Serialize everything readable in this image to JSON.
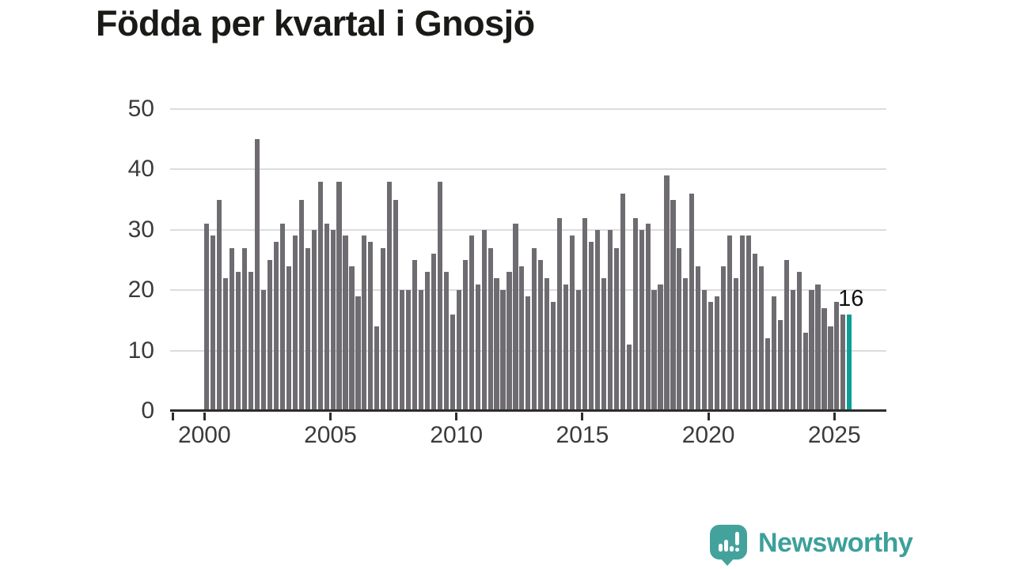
{
  "title": "Födda per kvartal i Gnosjö",
  "chart_data": {
    "type": "bar",
    "x_start": "2000-Q1",
    "x_end": "2025-Q3",
    "frequency": "quarterly",
    "values": [
      31,
      29,
      35,
      22,
      27,
      23,
      27,
      23,
      45,
      20,
      25,
      28,
      31,
      24,
      29,
      35,
      27,
      30,
      38,
      31,
      30,
      38,
      29,
      24,
      19,
      29,
      28,
      14,
      27,
      38,
      35,
      20,
      20,
      25,
      20,
      23,
      26,
      38,
      23,
      16,
      20,
      25,
      29,
      21,
      30,
      27,
      22,
      20,
      23,
      31,
      24,
      19,
      27,
      25,
      22,
      18,
      32,
      21,
      29,
      20,
      32,
      28,
      30,
      22,
      30,
      27,
      36,
      11,
      32,
      30,
      31,
      20,
      21,
      39,
      35,
      27,
      22,
      36,
      24,
      20,
      18,
      19,
      24,
      29,
      22,
      29,
      29,
      26,
      24,
      12,
      19,
      15,
      25,
      20,
      23,
      13,
      20,
      21,
      17,
      14,
      18,
      16,
      16
    ],
    "highlight_index": 102,
    "highlight_label": "16",
    "ylim": [
      0,
      50
    ],
    "yticks": [
      0,
      10,
      20,
      30,
      40,
      50
    ],
    "xticks": [
      {
        "label": "2000",
        "quarter_index": 0
      },
      {
        "label": "2005",
        "quarter_index": 20
      },
      {
        "label": "2010",
        "quarter_index": 40
      },
      {
        "label": "2015",
        "quarter_index": 60
      },
      {
        "label": "2020",
        "quarter_index": 80
      },
      {
        "label": "2025",
        "quarter_index": 100
      }
    ],
    "grid": true,
    "legend": "none",
    "bar_color": "#6f6c71",
    "highlight_color": "#0c9e96"
  },
  "logo": {
    "text": "Newsworthy",
    "color": "#3da09a",
    "icon": "newsworthy-bubble-bar-chart-icon"
  }
}
